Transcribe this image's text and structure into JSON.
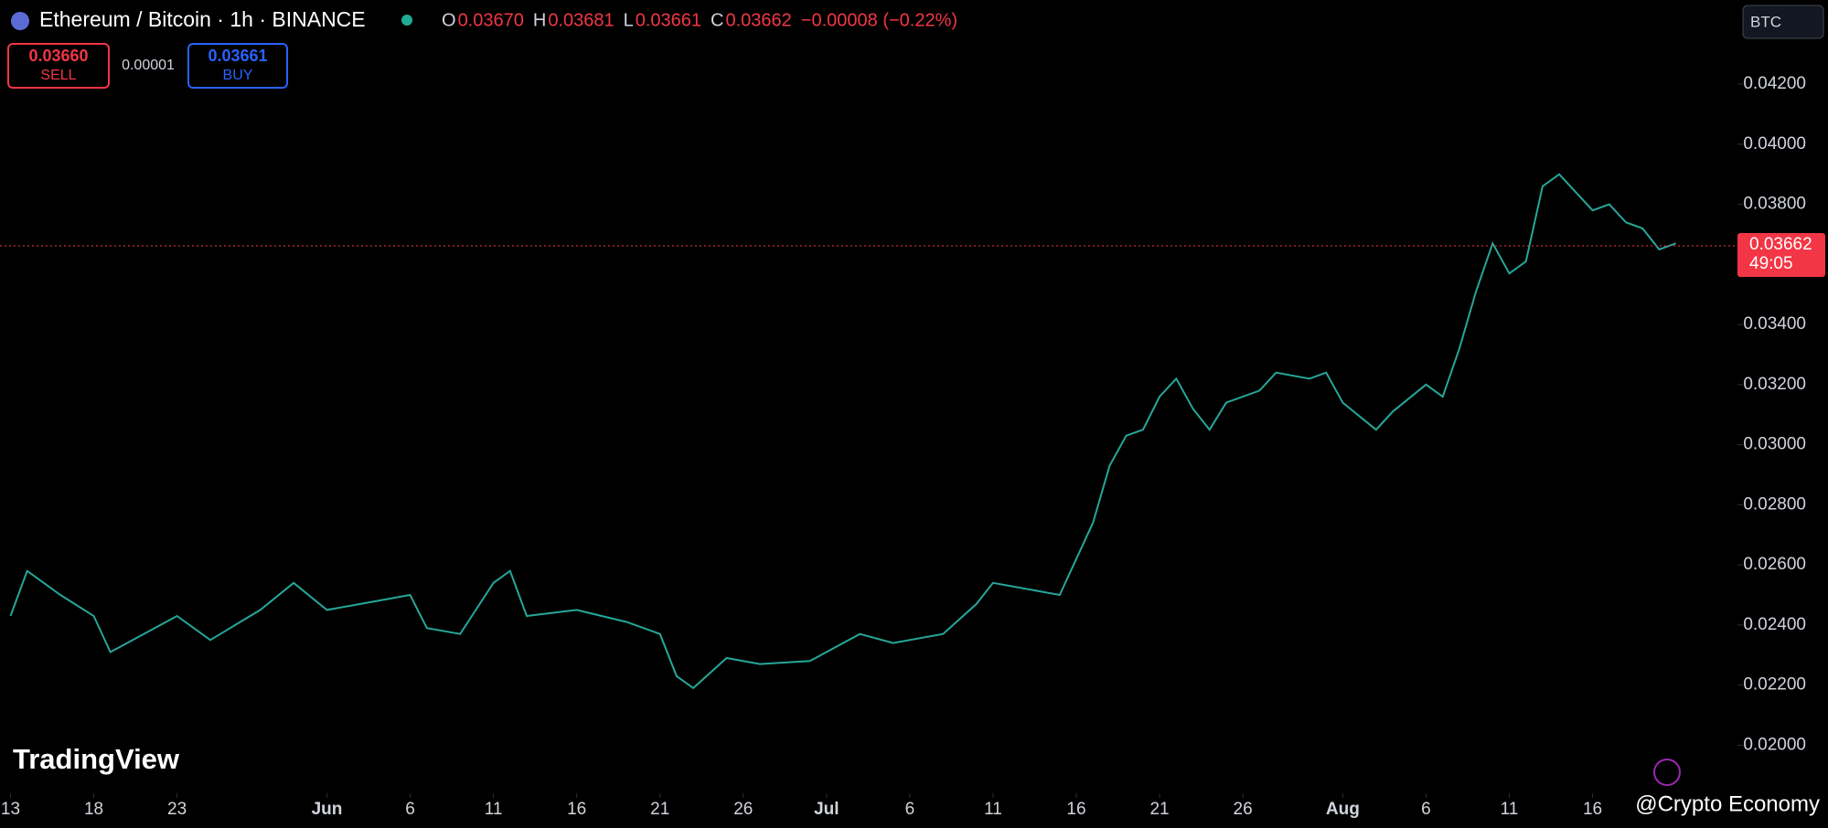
{
  "header": {
    "symbol": "Ethereum / Bitcoin · 1h · BINANCE",
    "ohlc": [
      {
        "key": "O",
        "value": "0.03670"
      },
      {
        "key": "H",
        "value": "0.03681"
      },
      {
        "key": "L",
        "value": "0.03661"
      },
      {
        "key": "C",
        "value": "0.03662"
      }
    ],
    "change": "−0.00008 (−0.22%)",
    "sell": {
      "price": "0.03660",
      "label": "SELL"
    },
    "spread": "0.00001",
    "buy": {
      "price": "0.03661",
      "label": "BUY"
    },
    "currency": "BTC",
    "logo": "TradingView",
    "watermark": "@Crypto Economy"
  },
  "chart_data": {
    "type": "line",
    "color": "#26a69a",
    "x": [
      0,
      1,
      3,
      5,
      6,
      8,
      10,
      12,
      15,
      17,
      19,
      21,
      24,
      25,
      27,
      29,
      30,
      31,
      34,
      37,
      39,
      40,
      41,
      43,
      45,
      48,
      51,
      53,
      56,
      58,
      59,
      61,
      63,
      65,
      66,
      67,
      68,
      69,
      70,
      71,
      72,
      73,
      75,
      76,
      78,
      79,
      80,
      82,
      83,
      85,
      86,
      87,
      88,
      89,
      90,
      91,
      92,
      93,
      94,
      95,
      96,
      97,
      98,
      99,
      100
    ],
    "values": [
      0.0243,
      0.0258,
      0.025,
      0.0243,
      0.0231,
      0.0237,
      0.0243,
      0.0235,
      0.0245,
      0.0254,
      0.0245,
      0.0247,
      0.025,
      0.0239,
      0.0237,
      0.0254,
      0.0258,
      0.0243,
      0.0245,
      0.0241,
      0.0237,
      0.0223,
      0.0219,
      0.0229,
      0.0227,
      0.0228,
      0.0237,
      0.0234,
      0.0237,
      0.0247,
      0.0254,
      0.0252,
      0.025,
      0.0274,
      0.0293,
      0.0303,
      0.0305,
      0.0316,
      0.0322,
      0.0312,
      0.0305,
      0.0314,
      0.0318,
      0.0324,
      0.0322,
      0.0324,
      0.0314,
      0.0305,
      0.0311,
      0.032,
      0.0316,
      0.0332,
      0.0351,
      0.0367,
      0.0357,
      0.0361,
      0.0386,
      0.039,
      0.0384,
      0.0378,
      0.038,
      0.0374,
      0.0372,
      0.0365,
      0.0367
    ],
    "xlim": [
      -0.63,
      103.7
    ],
    "ylim": [
      0.0184,
      0.0448
    ],
    "xticks": [
      {
        "value": 0,
        "label": "13"
      },
      {
        "value": 5,
        "label": "18"
      },
      {
        "value": 10,
        "label": "23"
      },
      {
        "value": 19,
        "label": "Jun"
      },
      {
        "value": 24,
        "label": "6"
      },
      {
        "value": 29,
        "label": "11"
      },
      {
        "value": 34,
        "label": "16"
      },
      {
        "value": 39,
        "label": "21"
      },
      {
        "value": 44,
        "label": "26"
      },
      {
        "value": 49,
        "label": "Jul"
      },
      {
        "value": 54,
        "label": "6"
      },
      {
        "value": 59,
        "label": "11"
      },
      {
        "value": 64,
        "label": "16"
      },
      {
        "value": 69,
        "label": "21"
      },
      {
        "value": 74,
        "label": "26"
      },
      {
        "value": 80,
        "label": "Aug"
      },
      {
        "value": 85,
        "label": "6"
      },
      {
        "value": 90,
        "label": "11"
      },
      {
        "value": 95,
        "label": "16"
      }
    ],
    "yticks": [
      {
        "value": 0.02,
        "label": "0.02000"
      },
      {
        "value": 0.022,
        "label": "0.02200"
      },
      {
        "value": 0.024,
        "label": "0.02400"
      },
      {
        "value": 0.026,
        "label": "0.02600"
      },
      {
        "value": 0.028,
        "label": "0.02800"
      },
      {
        "value": 0.03,
        "label": "0.03000"
      },
      {
        "value": 0.032,
        "label": "0.03200"
      },
      {
        "value": 0.034,
        "label": "0.03400"
      },
      {
        "value": 0.038,
        "label": "0.03800"
      },
      {
        "value": 0.04,
        "label": "0.04000"
      },
      {
        "value": 0.042,
        "label": "0.04200"
      }
    ],
    "last_price": 0.03662,
    "last_price_color": "#f23645",
    "countdown": "49:05"
  }
}
